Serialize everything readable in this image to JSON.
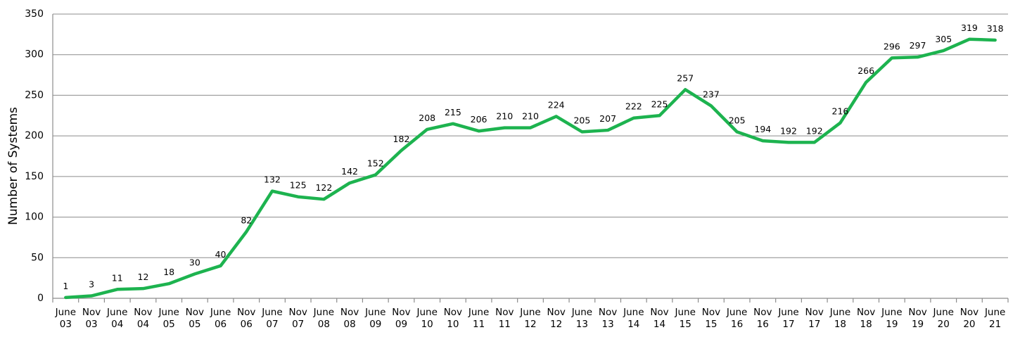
{
  "chart_data": {
    "type": "line",
    "title": "",
    "xlabel": "",
    "ylabel": "Number of Systems",
    "ylim": [
      0,
      350
    ],
    "yticks": [
      0,
      50,
      100,
      150,
      200,
      250,
      300,
      350
    ],
    "grid": true,
    "legend": "none",
    "categories": [
      [
        "June",
        "03"
      ],
      [
        "Nov",
        "03"
      ],
      [
        "June",
        "04"
      ],
      [
        "Nov",
        "04"
      ],
      [
        "June",
        "05"
      ],
      [
        "Nov",
        "05"
      ],
      [
        "June",
        "06"
      ],
      [
        "Nov",
        "06"
      ],
      [
        "June",
        "07"
      ],
      [
        "Nov",
        "07"
      ],
      [
        "June",
        "08"
      ],
      [
        "Nov",
        "08"
      ],
      [
        "June",
        "09"
      ],
      [
        "Nov",
        "09"
      ],
      [
        "June",
        "10"
      ],
      [
        "Nov",
        "10"
      ],
      [
        "June",
        "11"
      ],
      [
        "Nov",
        "11"
      ],
      [
        "June",
        "12"
      ],
      [
        "Nov",
        "12"
      ],
      [
        "June",
        "13"
      ],
      [
        "Nov",
        "13"
      ],
      [
        "June",
        "14"
      ],
      [
        "Nov",
        "14"
      ],
      [
        "June",
        "15"
      ],
      [
        "Nov",
        "15"
      ],
      [
        "June",
        "16"
      ],
      [
        "Nov",
        "16"
      ],
      [
        "June",
        "17"
      ],
      [
        "Nov",
        "17"
      ],
      [
        "June",
        "18"
      ],
      [
        "Nov",
        "18"
      ],
      [
        "June",
        "19"
      ],
      [
        "Nov",
        "19"
      ],
      [
        "June",
        "20"
      ],
      [
        "Nov",
        "20"
      ],
      [
        "June",
        "21"
      ]
    ],
    "series": [
      {
        "color": "#1db34f",
        "values": [
          1,
          3,
          11,
          12,
          18,
          30,
          40,
          82,
          132,
          125,
          122,
          142,
          152,
          182,
          208,
          215,
          206,
          210,
          210,
          224,
          205,
          207,
          222,
          225,
          257,
          237,
          205,
          194,
          192,
          192,
          216,
          266,
          296,
          297,
          305,
          319,
          318
        ]
      }
    ],
    "data_labels": [
      "1",
      "3",
      "11",
      "12",
      "18",
      "30",
      "40",
      "82",
      "132",
      "125",
      "122",
      "142",
      "152",
      "182",
      "208",
      "215",
      "206",
      "210",
      "210",
      "224",
      "205",
      "207",
      "222",
      "225",
      "257",
      "237",
      "205",
      "194",
      "192",
      "192",
      "216",
      "266",
      "296",
      "297",
      "305",
      "319",
      "318"
    ]
  }
}
